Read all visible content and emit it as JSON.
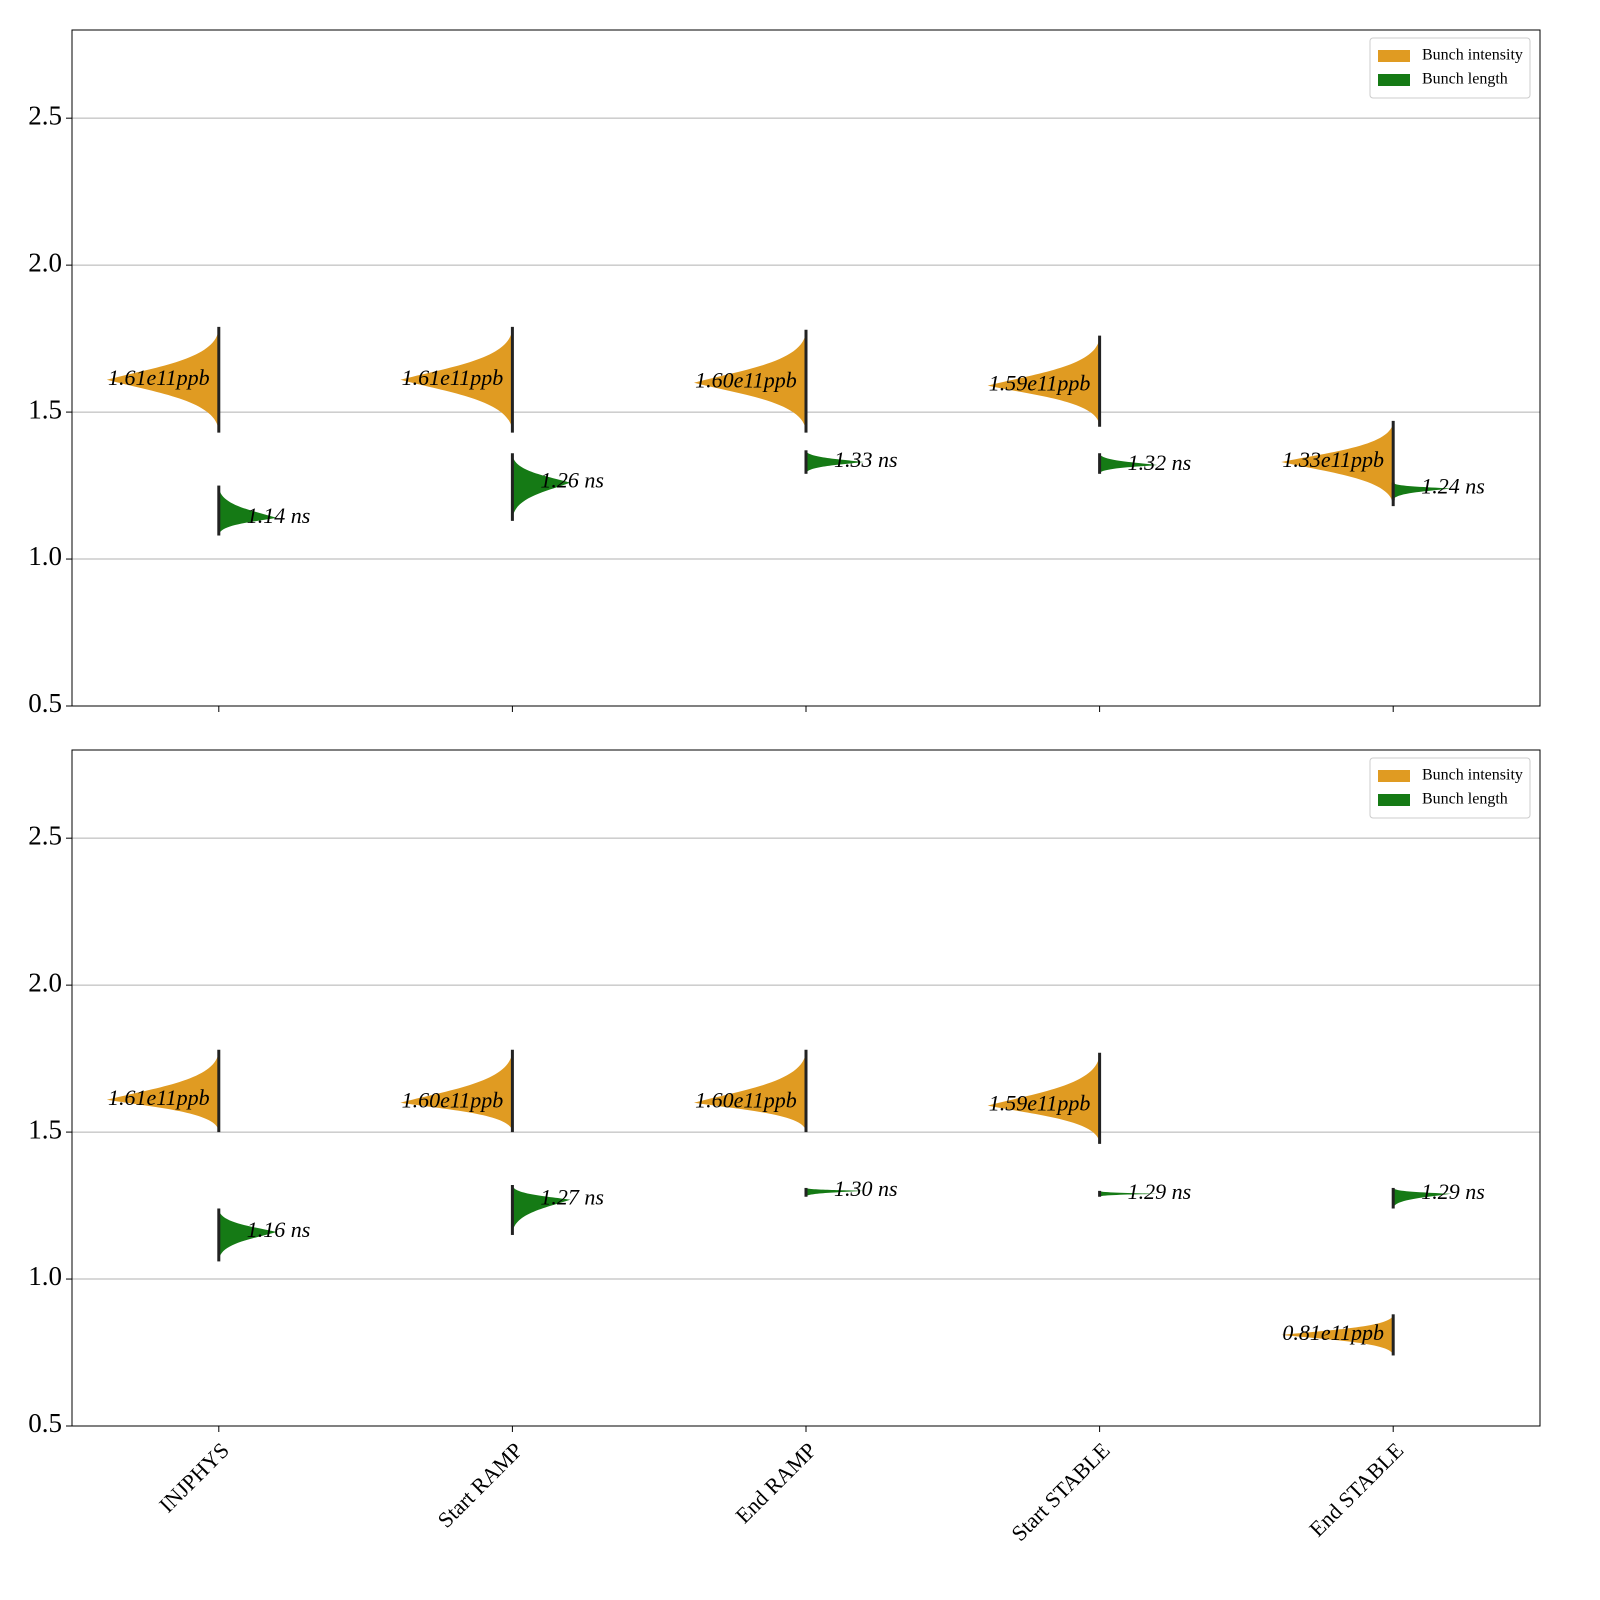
{
  "chart_data": [
    {
      "type": "violin",
      "categories": [
        "INJPHYS",
        "Start RAMP",
        "End RAMP",
        "Start STABLE",
        "End STABLE"
      ],
      "xticklabels": false,
      "series": [
        {
          "name": "Bunch intensity",
          "color": "#e09b22",
          "side": "left",
          "values": [
            1.61,
            1.61,
            1.6,
            1.59,
            1.33
          ],
          "value_labels": [
            "1.61e11ppb",
            "1.61e11ppb",
            "1.60e11ppb",
            "1.59e11ppb",
            "1.33e11ppb"
          ],
          "min": [
            1.43,
            1.43,
            1.43,
            1.45,
            1.18
          ],
          "max": [
            1.79,
            1.79,
            1.78,
            1.76,
            1.47
          ]
        },
        {
          "name": "Bunch length",
          "color": "#157a15",
          "side": "right",
          "values": [
            1.14,
            1.26,
            1.33,
            1.32,
            1.24
          ],
          "value_labels": [
            "1.14 ns",
            "1.26 ns",
            "1.33 ns",
            "1.32 ns",
            "1.24 ns"
          ],
          "min": [
            1.08,
            1.13,
            1.29,
            1.29,
            1.2
          ],
          "max": [
            1.25,
            1.36,
            1.37,
            1.36,
            1.26
          ]
        }
      ],
      "ylim": [
        0.5,
        2.8
      ],
      "yticks": [
        0.5,
        {
          "value": 1,
          "label": "1.0"
        },
        1.5,
        {
          "value": 2,
          "label": "2.0"
        },
        2.5
      ],
      "grid": true,
      "legend": "upper right"
    },
    {
      "type": "violin",
      "categories": [
        "INJPHYS",
        "Start RAMP",
        "End RAMP",
        "Start STABLE",
        "End STABLE"
      ],
      "xticklabels": true,
      "series": [
        {
          "name": "Bunch intensity",
          "color": "#e09b22",
          "side": "left",
          "values": [
            1.61,
            1.6,
            1.6,
            1.59,
            0.81
          ],
          "value_labels": [
            "1.61e11ppb",
            "1.60e11ppb",
            "1.60e11ppb",
            "1.59e11ppb",
            "0.81e11ppb"
          ],
          "min": [
            1.5,
            1.5,
            1.5,
            1.46,
            0.74
          ],
          "max": [
            1.78,
            1.78,
            1.78,
            1.77,
            0.88
          ]
        },
        {
          "name": "Bunch length",
          "color": "#157a15",
          "side": "right",
          "values": [
            1.16,
            1.27,
            1.3,
            1.29,
            1.29
          ],
          "value_labels": [
            "1.16 ns",
            "1.27 ns",
            "1.30 ns",
            "1.29 ns",
            "1.29 ns"
          ],
          "min": [
            1.06,
            1.15,
            1.28,
            1.28,
            1.24
          ],
          "max": [
            1.24,
            1.32,
            1.31,
            1.3,
            1.31
          ]
        }
      ],
      "ylim": [
        0.5,
        2.8
      ],
      "yticks": [
        0.5,
        {
          "value": 1,
          "label": "1.0"
        },
        1.5,
        {
          "value": 2,
          "label": "2.0"
        },
        2.5
      ],
      "grid": true,
      "legend": "upper right"
    }
  ]
}
